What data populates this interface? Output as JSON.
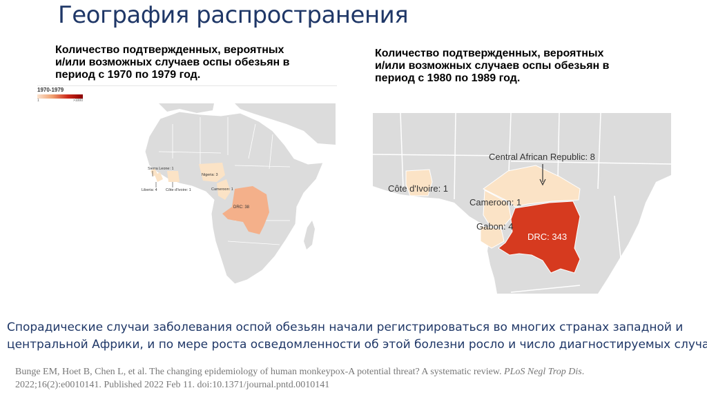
{
  "title": "География распространения",
  "left_panel": {
    "caption_lines": [
      "Количество подтвержденных, вероятных",
      "и/или возможных случаев оспы обезьян в",
      "период с 1970 по 1979 год."
    ],
    "legend": {
      "title": "1970-1979",
      "min_label": "1",
      "max_label": ">1000"
    },
    "labels": {
      "sierra_leone": "Sierra Leone: 1",
      "liberia": "Liberia: 4",
      "cote_divoire": "Côte d'Ivoire: 1",
      "nigeria": "Nigeria: 3",
      "cameroon": "Cameroon: 1",
      "drc": "DRC: 38"
    }
  },
  "right_panel": {
    "caption_lines": [
      "Количество подтвержденных, вероятных",
      "и/или возможных случаев оспы обезьян в",
      "период с 1980 по 1989 год."
    ],
    "labels": {
      "car": "Central African Republic: 8",
      "cote_divoire": "Côte d'Ivoire: 1",
      "cameroon": "Cameroon: 1",
      "gabon": "Gabon: 4",
      "drc": "DRC: 343"
    }
  },
  "body_lines": [
    "Спорадические случаи заболевания оспой обезьян  начали регистрироваться во многих странах западной и",
    "центральной Африки, и по мере роста осведомленности об этой болезни росло и число диагностируемых случаев"
  ],
  "citation": {
    "line1_prefix": "Bunge EM, Hoet B, Chen L, et al. The changing epidemiology of human monkeypox-A potential threat? A systematic review. ",
    "journal": "PLoS Negl Trop Dis",
    "line1_suffix": ".",
    "line2": "2022;16(2):e0010141. Published 2022 Feb 11. doi:10.1371/journal.pntd.0010141"
  },
  "colors": {
    "land": "#dcdcdc",
    "border": "#ffffff",
    "low": "#fbe3c6",
    "mid": "#f4b08a",
    "high": "#d63a1f",
    "title": "#1f3767"
  }
}
